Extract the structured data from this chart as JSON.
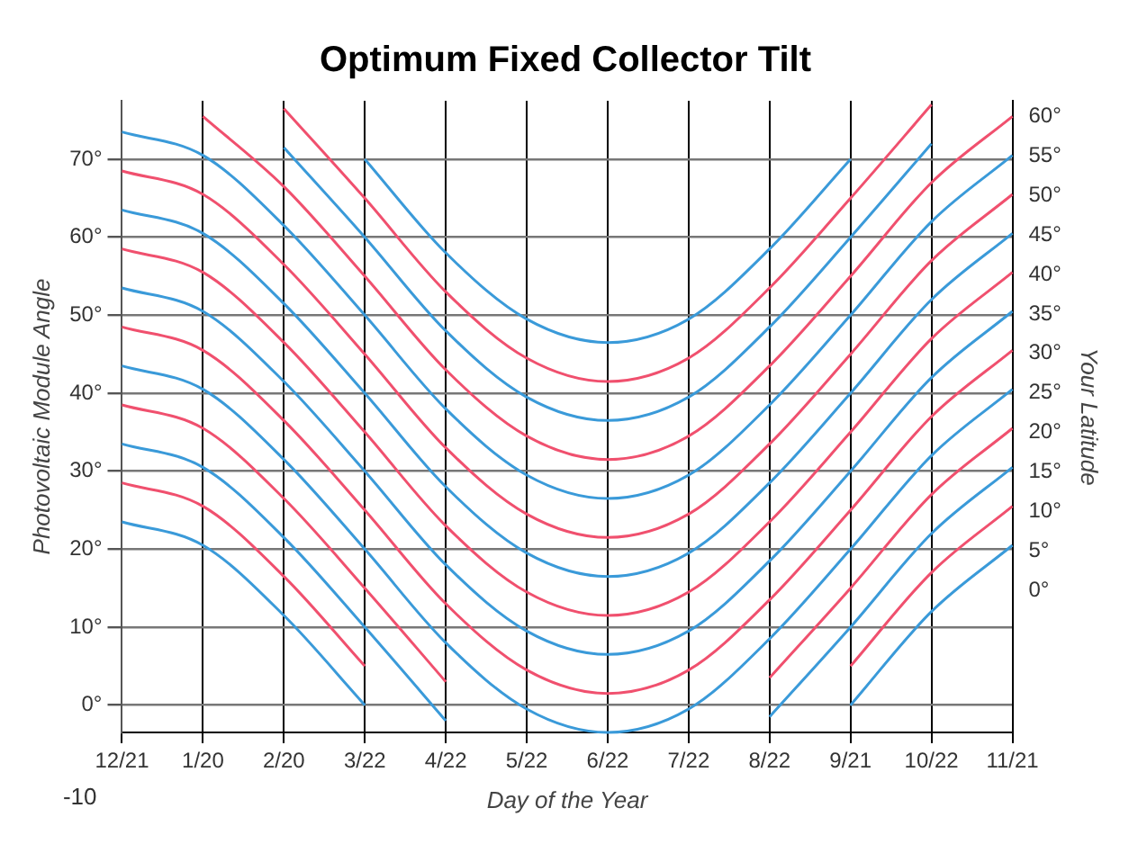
{
  "chart_data": {
    "type": "line",
    "title": "Optimum Fixed Collector Tilt",
    "xlabel": "Day of the Year",
    "ylabel": "Photovoltaic Module Angle",
    "y2label": "Your Latitude",
    "annotations": [
      "-10"
    ],
    "categories": [
      "12/21",
      "1/20",
      "2/20",
      "3/22",
      "4/22",
      "5/22",
      "6/22",
      "7/22",
      "8/22",
      "9/21",
      "10/22",
      "11/21"
    ],
    "ylim": [
      -3.5,
      77.5
    ],
    "yticks": [
      {
        "value": 0,
        "label": "0°"
      },
      {
        "value": 10,
        "label": "10°"
      },
      {
        "value": 20,
        "label": "20°"
      },
      {
        "value": 30,
        "label": "30°"
      },
      {
        "value": 40,
        "label": "40°"
      },
      {
        "value": 50,
        "label": "50°"
      },
      {
        "value": 60,
        "label": "60°"
      },
      {
        "value": 70,
        "label": "70°"
      }
    ],
    "y2lim": [
      -18,
      62
    ],
    "y2ticks": [
      {
        "value": 0,
        "label": "0°"
      },
      {
        "value": 5,
        "label": "5°"
      },
      {
        "value": 10,
        "label": "10°"
      },
      {
        "value": 15,
        "label": "15°"
      },
      {
        "value": 20,
        "label": "20°"
      },
      {
        "value": 25,
        "label": "25°"
      },
      {
        "value": 30,
        "label": "30°"
      },
      {
        "value": 35,
        "label": "35°"
      },
      {
        "value": 40,
        "label": "40°"
      },
      {
        "value": 45,
        "label": "45°"
      },
      {
        "value": 50,
        "label": "50°"
      },
      {
        "value": 55,
        "label": "55°"
      },
      {
        "value": 60,
        "label": "60°"
      }
    ],
    "grid": true,
    "legend": false,
    "marker": "none",
    "line_style": "solid",
    "series": [
      {
        "color": "#3a9ad9",
        "values": [
          23.5,
          20.5,
          11.5,
          0,
          null,
          null,
          null,
          null,
          null,
          0,
          12,
          20.5
        ]
      },
      {
        "color": "#f0506e",
        "values": [
          28.5,
          25.5,
          16.5,
          5,
          null,
          null,
          null,
          null,
          null,
          5,
          17,
          25.5
        ]
      },
      {
        "color": "#3a9ad9",
        "values": [
          33.5,
          30.5,
          21.5,
          10,
          -2,
          null,
          null,
          null,
          -1.5,
          10,
          22,
          30.5
        ]
      },
      {
        "color": "#f0506e",
        "values": [
          38.5,
          35.5,
          26.5,
          15,
          3,
          null,
          null,
          null,
          3.5,
          15,
          27,
          35.5
        ]
      },
      {
        "color": "#3a9ad9",
        "values": [
          43.5,
          40.5,
          31.5,
          20,
          8,
          -0.5,
          -3.5,
          -0.5,
          8.5,
          20,
          32,
          40.5
        ]
      },
      {
        "color": "#f0506e",
        "values": [
          48.5,
          45.5,
          36.5,
          25,
          13,
          4.5,
          1.5,
          4.5,
          13.5,
          25,
          37,
          45.5
        ]
      },
      {
        "color": "#3a9ad9",
        "values": [
          53.5,
          50.5,
          41.5,
          30,
          18,
          9.5,
          6.5,
          9.5,
          18.5,
          30,
          42,
          50.5
        ]
      },
      {
        "color": "#f0506e",
        "values": [
          58.5,
          55.5,
          46.5,
          35,
          23,
          14.5,
          11.5,
          14.5,
          23.5,
          35,
          47,
          55.5
        ]
      },
      {
        "color": "#3a9ad9",
        "values": [
          63.5,
          60.5,
          51.5,
          40,
          28,
          19.5,
          16.5,
          19.5,
          28.5,
          40,
          52,
          60.5
        ]
      },
      {
        "color": "#f0506e",
        "values": [
          68.5,
          65.5,
          56.5,
          45,
          33,
          24.5,
          21.5,
          24.5,
          33.5,
          45,
          57,
          65.5
        ]
      },
      {
        "color": "#3a9ad9",
        "values": [
          73.5,
          70.5,
          61.5,
          50,
          38,
          29.5,
          26.5,
          29.5,
          38.5,
          50,
          62,
          70.5
        ]
      },
      {
        "color": "#f0506e",
        "values": [
          null,
          75.5,
          66.5,
          55,
          43,
          34.5,
          31.5,
          34.5,
          43.5,
          55,
          67,
          75.5
        ]
      },
      {
        "color": "#3a9ad9",
        "values": [
          null,
          null,
          71.5,
          60,
          48,
          39.5,
          36.5,
          39.5,
          48.5,
          60,
          72,
          null
        ]
      },
      {
        "color": "#f0506e",
        "values": [
          null,
          null,
          76.5,
          65,
          53,
          44.5,
          41.5,
          44.5,
          53.5,
          65,
          77,
          null
        ]
      },
      {
        "color": "#3a9ad9",
        "values": [
          null,
          null,
          null,
          70,
          58,
          49.5,
          46.5,
          49.5,
          58.5,
          70,
          null,
          null
        ]
      }
    ]
  }
}
